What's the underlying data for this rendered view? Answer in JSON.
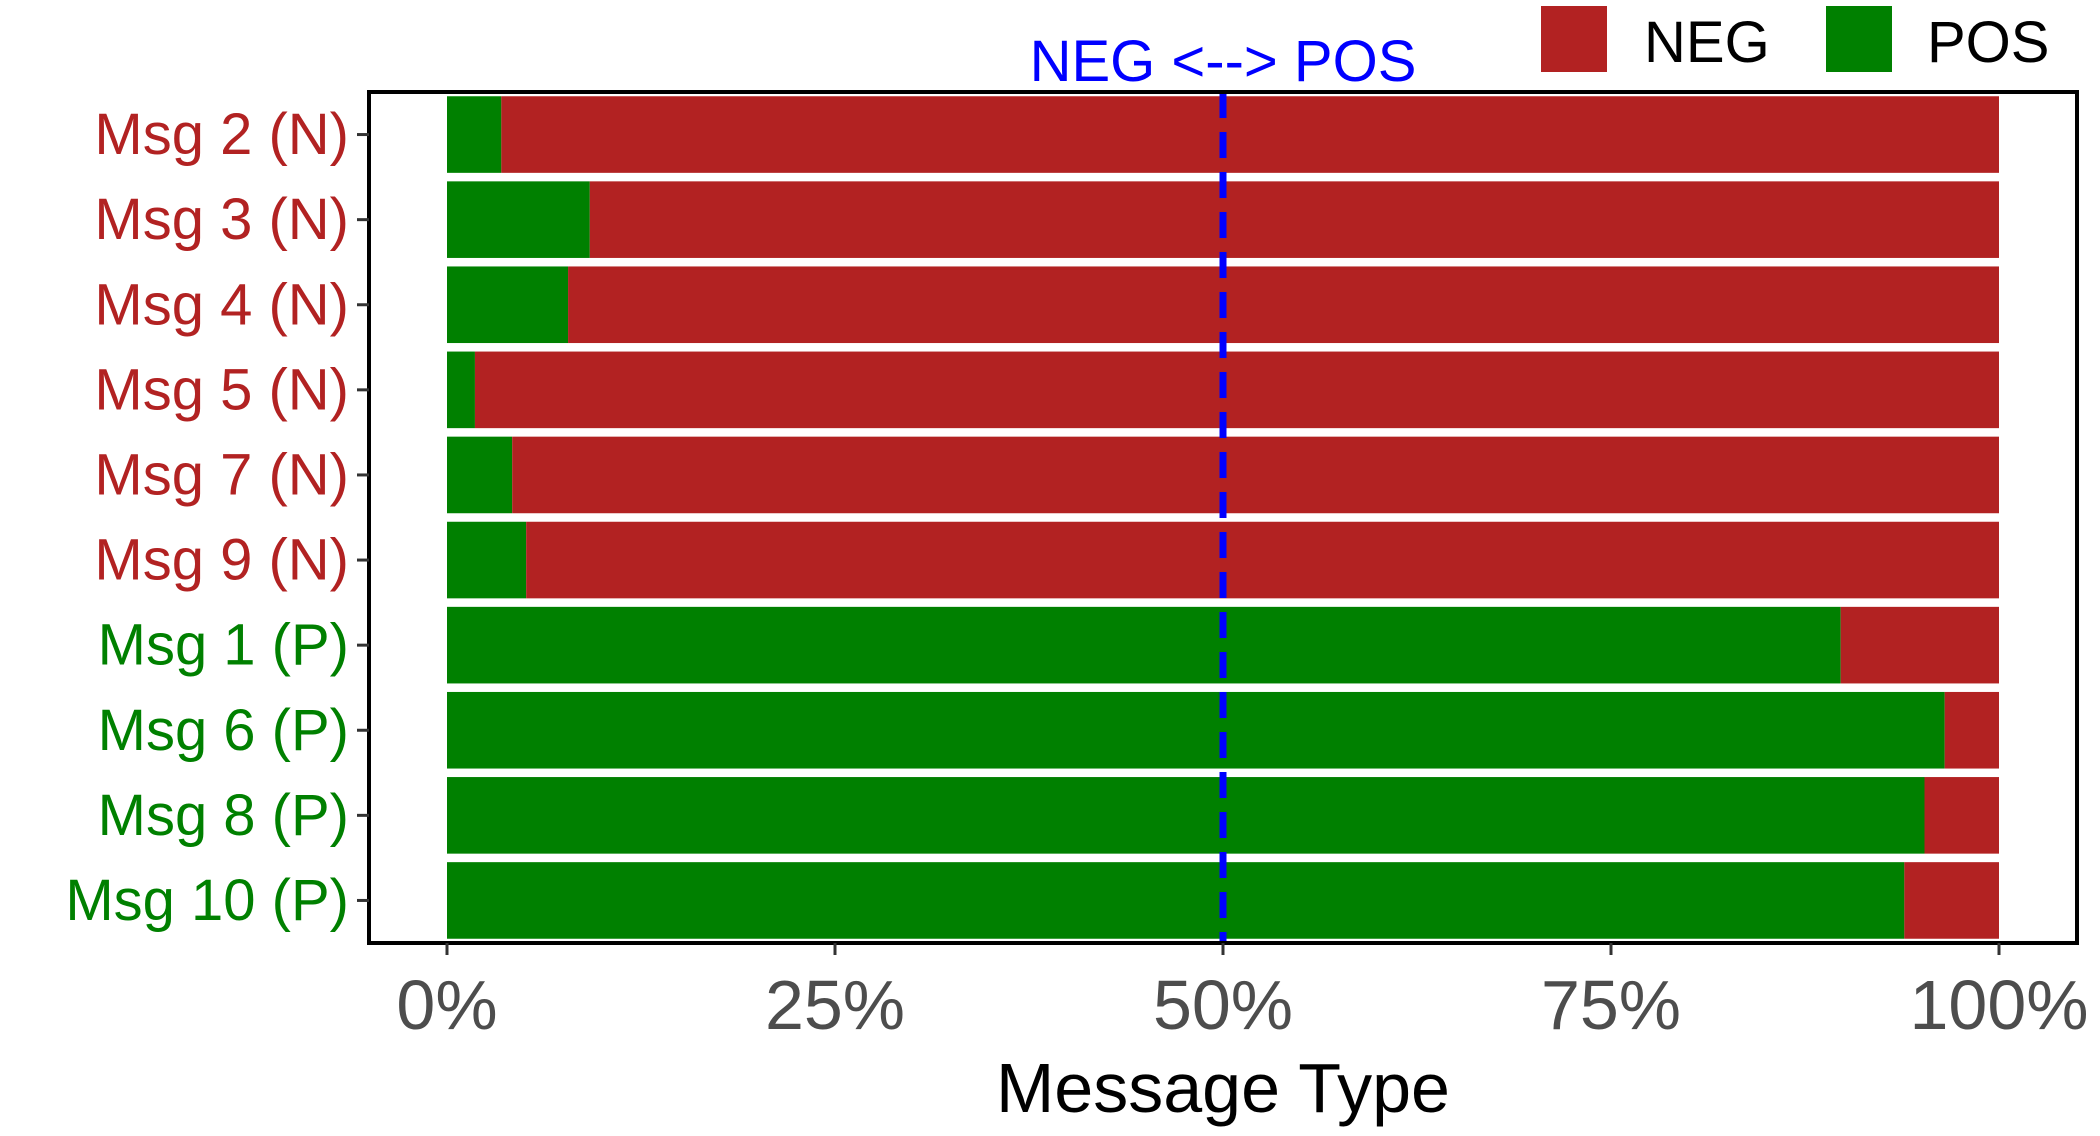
{
  "chart_data": {
    "type": "bar",
    "orientation": "horizontal",
    "stacked": true,
    "title": "",
    "xlabel": "Message Type",
    "ylabel": "",
    "xlim": [
      0,
      1
    ],
    "x_ticks": [
      0,
      0.25,
      0.5,
      0.75,
      1
    ],
    "x_tick_labels": [
      "0%",
      "25%",
      "50%",
      "75%",
      "100%"
    ],
    "legend_position": "top-right",
    "categories": [
      "Msg 2 (N)",
      "Msg 3 (N)",
      "Msg 4 (N)",
      "Msg 5 (N)",
      "Msg 7 (N)",
      "Msg 9 (N)",
      "Msg 1 (P)",
      "Msg 6 (P)",
      "Msg 8 (P)",
      "Msg 10 (P)"
    ],
    "category_groups": [
      "N",
      "N",
      "N",
      "N",
      "N",
      "N",
      "P",
      "P",
      "P",
      "P"
    ],
    "series": [
      {
        "name": "POS",
        "color": "#008000",
        "values": [
          0.035,
          0.092,
          0.078,
          0.018,
          0.042,
          0.051,
          0.898,
          0.965,
          0.952,
          0.939
        ]
      },
      {
        "name": "NEG",
        "color": "#B22222",
        "values": [
          0.965,
          0.908,
          0.922,
          0.982,
          0.958,
          0.949,
          0.102,
          0.035,
          0.048,
          0.061
        ]
      }
    ],
    "legend_order": [
      "NEG",
      "POS"
    ],
    "reference_line": {
      "x": 0.5,
      "label": "NEG <--> POS",
      "color": "#0000FF",
      "style": "dashed"
    },
    "label_colors": {
      "N": "#B22222",
      "P": "#008000"
    },
    "tick_label_color": "#4D4D4D"
  }
}
